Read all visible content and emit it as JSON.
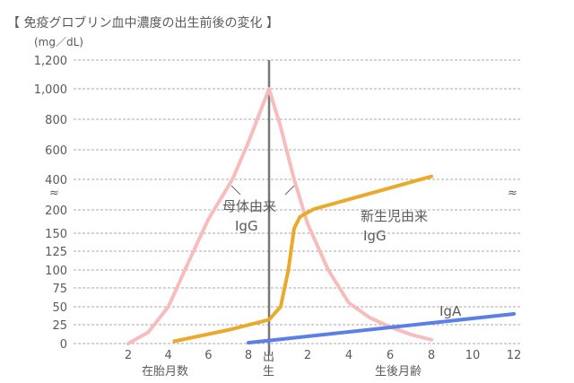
{
  "chart_data": {
    "type": "line",
    "title": "【 免疫グロブリン血中濃度の出生前後の変化 】",
    "ylabel": "(mg／dL)",
    "y_ticks": [
      0,
      25,
      50,
      75,
      100,
      125,
      150,
      200,
      400,
      600,
      800,
      1000,
      1200
    ],
    "y_tick_labels": [
      "0",
      "25",
      "50",
      "75",
      "100",
      "125",
      "150",
      "200",
      "400",
      "600",
      "800",
      "1,000",
      "1,200"
    ],
    "y_axis_break": "≈",
    "x_units": "months relative to birth (negative = gestational)",
    "x_ticks": [
      {
        "m": -7,
        "label": "2"
      },
      {
        "m": -5,
        "label": "4"
      },
      {
        "m": -3,
        "label": "6"
      },
      {
        "m": -1,
        "label": "8"
      },
      {
        "m": 2,
        "label": "2"
      },
      {
        "m": 4,
        "label": "4"
      },
      {
        "m": 6,
        "label": "6"
      },
      {
        "m": 8,
        "label": "8"
      },
      {
        "m": 10,
        "label": "10"
      },
      {
        "m": 12,
        "label": "12"
      }
    ],
    "birth_label": [
      "出",
      "生"
    ],
    "xlabel_prenatal": "在胎月数",
    "xlabel_postnatal": "生後月齢",
    "series": [
      {
        "name": "母体由来 IgG",
        "label_lines": [
          "母体由来",
          "IgG"
        ],
        "color": "#f7bcbc",
        "points": [
          [
            -7,
            0
          ],
          [
            -6,
            15
          ],
          [
            -5,
            50
          ],
          [
            -4,
            110
          ],
          [
            -3,
            180
          ],
          [
            -1.8,
            400
          ],
          [
            -1,
            650
          ],
          [
            0,
            1000
          ],
          [
            0.6,
            750
          ],
          [
            1.3,
            400
          ],
          [
            2,
            170
          ],
          [
            3,
            100
          ],
          [
            4,
            55
          ],
          [
            5,
            35
          ],
          [
            6,
            22
          ],
          [
            7,
            12
          ],
          [
            8,
            5
          ]
        ]
      },
      {
        "name": "新生児由来 IgG",
        "label_lines": [
          "新生児由来",
          "IgG"
        ],
        "color": "#eba92c",
        "points": [
          [
            -4.7,
            3
          ],
          [
            -2,
            18
          ],
          [
            0,
            32
          ],
          [
            0.6,
            50
          ],
          [
            1,
            100
          ],
          [
            1.3,
            160
          ],
          [
            1.6,
            185
          ],
          [
            2.3,
            205
          ],
          [
            8,
            420
          ]
        ]
      },
      {
        "name": "IgA",
        "label_lines": [
          "IgA"
        ],
        "color": "#5b7fe6",
        "points": [
          [
            -1,
            1
          ],
          [
            12,
            40
          ]
        ]
      }
    ]
  }
}
